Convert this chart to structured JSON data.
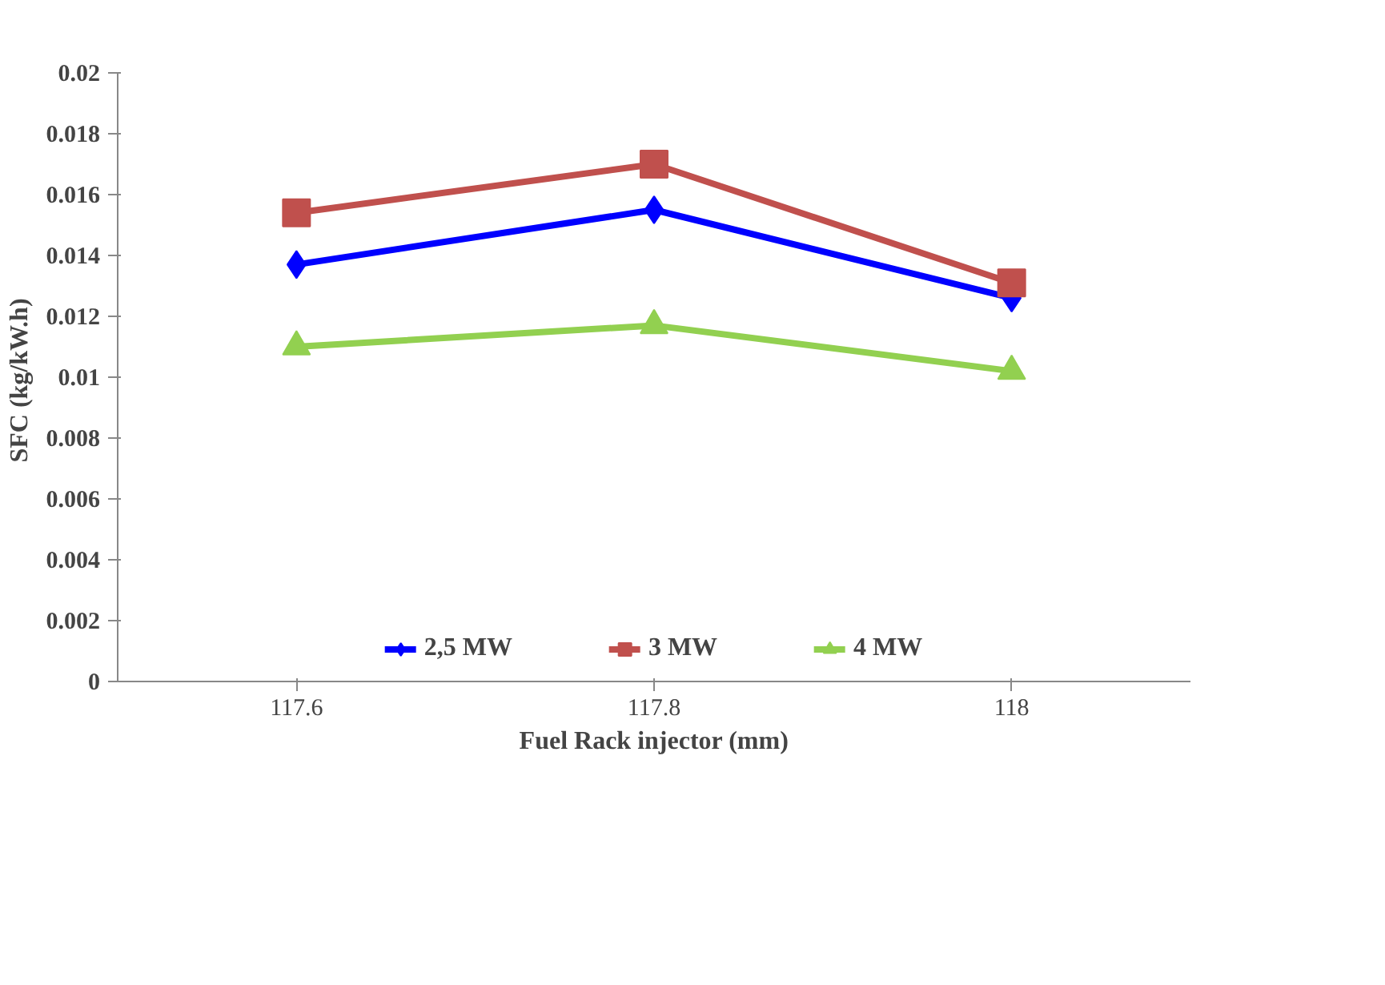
{
  "chart_data": {
    "type": "line",
    "xlabel": "Fuel Rack injector (mm)",
    "ylabel": "SFC  (kg/kW.h)",
    "x": [
      117.6,
      117.8,
      118
    ],
    "xlim": [
      117.5,
      118.1
    ],
    "xticks": [
      117.6,
      117.8,
      118
    ],
    "ylim": [
      0,
      0.02
    ],
    "yticks": [
      0,
      0.002,
      0.004,
      0.006,
      0.008,
      0.01,
      0.012,
      0.014,
      0.016,
      0.018,
      0.02
    ],
    "grid": false,
    "legend": "bottom",
    "line_style": "solid",
    "series": [
      {
        "name": "2,5 MW",
        "color": "#0000ff",
        "marker": "diamond",
        "values": [
          0.0137,
          0.0155,
          0.0126
        ]
      },
      {
        "name": "3 MW",
        "color": "#c0504d",
        "marker": "square",
        "values": [
          0.0154,
          0.017,
          0.0131
        ]
      },
      {
        "name": "4 MW",
        "color": "#92d050",
        "marker": "triangle",
        "values": [
          0.011,
          0.0117,
          0.0102
        ]
      }
    ]
  }
}
